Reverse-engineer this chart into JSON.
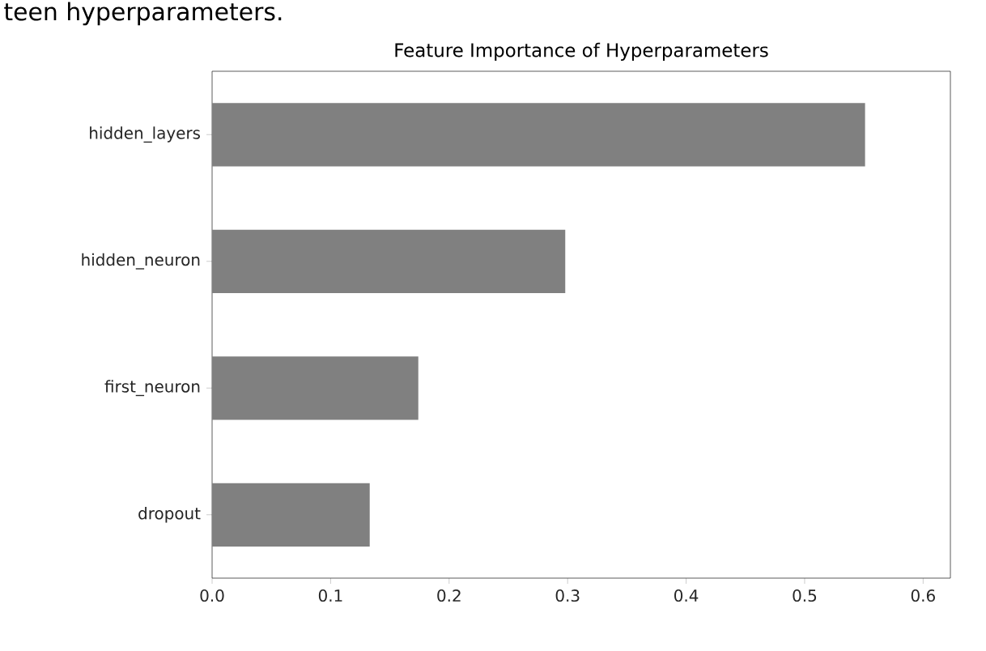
{
  "chart_data": {
    "type": "bar",
    "orientation": "horizontal",
    "title": "Feature Importance of Hyperparameters",
    "annotations": [
      "teen hyperparameters."
    ],
    "categories": [
      "hidden_layers",
      "hidden_neuron",
      "first_neuron",
      "dropout"
    ],
    "values": [
      0.551,
      0.298,
      0.174,
      0.133
    ],
    "color": "#808080",
    "xlim": [
      0,
      0.623
    ],
    "xticks": [
      {
        "value": 0,
        "label": "0.0"
      },
      0.1,
      0.2,
      0.3,
      0.4,
      0.5,
      0.6
    ]
  }
}
